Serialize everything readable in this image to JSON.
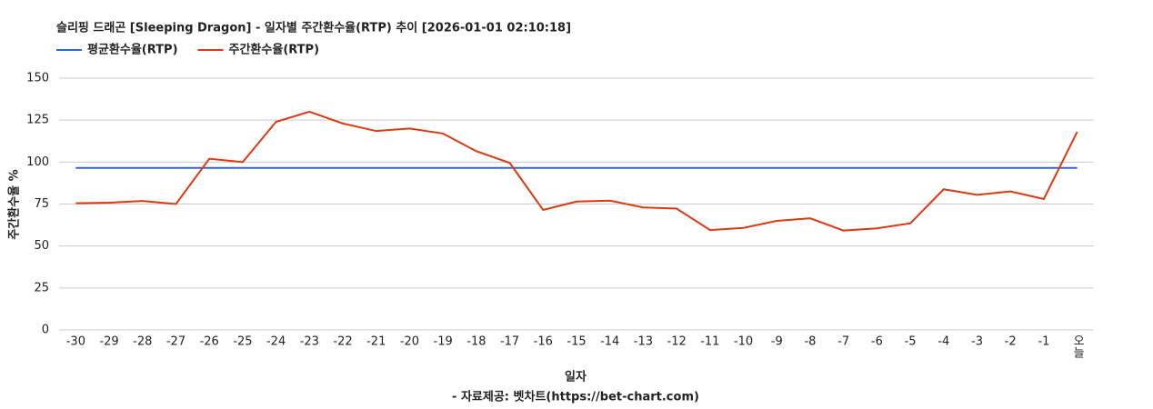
{
  "chart_data": {
    "type": "line",
    "title": "슬리핑 드래곤 [Sleeping Dragon] - 일자별 주간환수율(RTP) 추이 [2026-01-01 02:10:18]",
    "x_label": "일자",
    "y_label": "주간환수율 %",
    "source": "- 자료제공: 벳차트(https://bet-chart.com)",
    "categories": [
      "-30",
      "-29",
      "-28",
      "-27",
      "-26",
      "-25",
      "-24",
      "-23",
      "-22",
      "-21",
      "-20",
      "-19",
      "-18",
      "-17",
      "-16",
      "-15",
      "-14",
      "-13",
      "-12",
      "-11",
      "-10",
      "-9",
      "-8",
      "-7",
      "-6",
      "-5",
      "-4",
      "-3",
      "-2",
      "-1",
      "오늘"
    ],
    "series": [
      {
        "name": "평균환수율(RTP)",
        "color": "#3366cc",
        "values": [
          96.5,
          96.5,
          96.5,
          96.5,
          96.5,
          96.5,
          96.5,
          96.5,
          96.5,
          96.5,
          96.5,
          96.5,
          96.5,
          96.5,
          96.5,
          96.5,
          96.5,
          96.5,
          96.5,
          96.5,
          96.5,
          96.5,
          96.5,
          96.5,
          96.5,
          96.5,
          96.5,
          96.5,
          96.5,
          96.5,
          96.5
        ]
      },
      {
        "name": "주간환수율(RTP)",
        "color": "#dc3912",
        "values": [
          75.5,
          75.8,
          76.8,
          75,
          102,
          100,
          124,
          130,
          123,
          118.5,
          120,
          117,
          106.5,
          99.5,
          71.5,
          76.5,
          77,
          73,
          72.3,
          59.5,
          60.8,
          65,
          66.5,
          59.2,
          60.5,
          63.5,
          83.8,
          80.5,
          82.5,
          78,
          118
        ]
      }
    ],
    "ylim": [
      0,
      150
    ],
    "yticks": [
      0,
      25,
      50,
      75,
      100,
      125,
      150
    ],
    "grid": true
  }
}
